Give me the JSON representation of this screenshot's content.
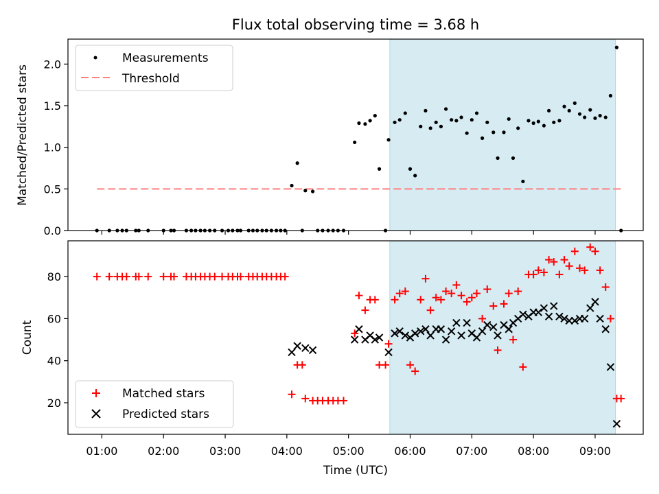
{
  "title": "Flux total observing time = 3.68 h",
  "xlabel": "Time (UTC)",
  "xticks": [
    "01:00",
    "02:00",
    "03:00",
    "04:00",
    "05:00",
    "06:00",
    "07:00",
    "08:00",
    "09:00"
  ],
  "colors": {
    "shade": "#add8e6",
    "measurement": "#000000",
    "threshold": "#ff7f7f",
    "matched": "#ff0000",
    "predicted": "#000000"
  },
  "chart_data": [
    {
      "type": "scatter",
      "ylabel": "Matched/Predicted stars",
      "xlim": [
        0.45,
        9.78
      ],
      "ylim": [
        0,
        2.3
      ],
      "yticks": [
        "0.0",
        "0.5",
        "1.0",
        "1.5",
        "2.0"
      ],
      "shaded_region": [
        5.67,
        9.33
      ],
      "legend": {
        "placement": "top-left",
        "entries": [
          "Measurements",
          "Threshold"
        ]
      },
      "threshold": {
        "name": "Threshold",
        "x": [
          0.92,
          9.42
        ],
        "y": 0.5
      },
      "series": [
        {
          "name": "Measurements",
          "points": [
            [
              0.92,
              0
            ],
            [
              1.12,
              0
            ],
            [
              1.25,
              0
            ],
            [
              1.33,
              0
            ],
            [
              1.4,
              0
            ],
            [
              1.55,
              0
            ],
            [
              1.6,
              0
            ],
            [
              1.75,
              0
            ],
            [
              2.0,
              0
            ],
            [
              2.12,
              0
            ],
            [
              2.17,
              0
            ],
            [
              2.37,
              0
            ],
            [
              2.45,
              0
            ],
            [
              2.52,
              0
            ],
            [
              2.6,
              0
            ],
            [
              2.67,
              0
            ],
            [
              2.75,
              0
            ],
            [
              2.83,
              0
            ],
            [
              2.95,
              0
            ],
            [
              3.05,
              0
            ],
            [
              3.12,
              0
            ],
            [
              3.2,
              0
            ],
            [
              3.25,
              0
            ],
            [
              3.38,
              0
            ],
            [
              3.45,
              0
            ],
            [
              3.52,
              0
            ],
            [
              3.6,
              0
            ],
            [
              3.67,
              0
            ],
            [
              3.75,
              0
            ],
            [
              3.83,
              0
            ],
            [
              3.9,
              0
            ],
            [
              3.97,
              0
            ],
            [
              4.08,
              0.54
            ],
            [
              4.17,
              0.81
            ],
            [
              4.25,
              0
            ],
            [
              4.3,
              0.48
            ],
            [
              4.42,
              0.47
            ],
            [
              4.5,
              0
            ],
            [
              4.58,
              0
            ],
            [
              4.67,
              0
            ],
            [
              4.75,
              0
            ],
            [
              4.83,
              0
            ],
            [
              4.92,
              0
            ],
            [
              5.1,
              1.06
            ],
            [
              5.17,
              1.29
            ],
            [
              5.27,
              1.28
            ],
            [
              5.35,
              1.32
            ],
            [
              5.43,
              1.38
            ],
            [
              5.5,
              0.74
            ],
            [
              5.6,
              0
            ],
            [
              5.65,
              1.09
            ],
            [
              5.75,
              1.3
            ],
            [
              5.83,
              1.33
            ],
            [
              5.92,
              1.41
            ],
            [
              6.0,
              0.74
            ],
            [
              6.08,
              0.66
            ],
            [
              6.17,
              1.25
            ],
            [
              6.25,
              1.44
            ],
            [
              6.33,
              1.23
            ],
            [
              6.42,
              1.3
            ],
            [
              6.5,
              1.25
            ],
            [
              6.58,
              1.46
            ],
            [
              6.67,
              1.33
            ],
            [
              6.75,
              1.32
            ],
            [
              6.83,
              1.36
            ],
            [
              6.92,
              1.17
            ],
            [
              7.0,
              1.33
            ],
            [
              7.08,
              1.41
            ],
            [
              7.17,
              1.11
            ],
            [
              7.25,
              1.3
            ],
            [
              7.35,
              1.18
            ],
            [
              7.42,
              0.87
            ],
            [
              7.52,
              1.18
            ],
            [
              7.6,
              1.34
            ],
            [
              7.67,
              0.87
            ],
            [
              7.75,
              1.23
            ],
            [
              7.83,
              0.59
            ],
            [
              7.92,
              1.32
            ],
            [
              8.0,
              1.29
            ],
            [
              8.08,
              1.31
            ],
            [
              8.17,
              1.26
            ],
            [
              8.25,
              1.44
            ],
            [
              8.33,
              1.3
            ],
            [
              8.42,
              1.32
            ],
            [
              8.5,
              1.49
            ],
            [
              8.58,
              1.44
            ],
            [
              8.67,
              1.53
            ],
            [
              8.75,
              1.4
            ],
            [
              8.83,
              1.36
            ],
            [
              8.92,
              1.45
            ],
            [
              9.0,
              1.35
            ],
            [
              9.08,
              1.38
            ],
            [
              9.17,
              1.36
            ],
            [
              9.25,
              1.62
            ],
            [
              9.35,
              2.2
            ],
            [
              9.42,
              0
            ]
          ]
        }
      ]
    },
    {
      "type": "scatter",
      "ylabel": "Count",
      "xlim": [
        0.45,
        9.78
      ],
      "ylim": [
        5,
        97
      ],
      "yticks": [
        "20",
        "40",
        "60",
        "80"
      ],
      "shaded_region": [
        5.67,
        9.33
      ],
      "legend": {
        "placement": "bottom-left",
        "entries": [
          "Matched stars",
          "Predicted stars"
        ]
      },
      "series": [
        {
          "name": "Matched stars",
          "marker": "plus",
          "points": [
            [
              0.92,
              80
            ],
            [
              1.12,
              80
            ],
            [
              1.25,
              80
            ],
            [
              1.33,
              80
            ],
            [
              1.4,
              80
            ],
            [
              1.55,
              80
            ],
            [
              1.6,
              80
            ],
            [
              1.75,
              80
            ],
            [
              2.0,
              80
            ],
            [
              2.12,
              80
            ],
            [
              2.17,
              80
            ],
            [
              2.37,
              80
            ],
            [
              2.45,
              80
            ],
            [
              2.52,
              80
            ],
            [
              2.6,
              80
            ],
            [
              2.67,
              80
            ],
            [
              2.75,
              80
            ],
            [
              2.83,
              80
            ],
            [
              2.95,
              80
            ],
            [
              3.05,
              80
            ],
            [
              3.12,
              80
            ],
            [
              3.2,
              80
            ],
            [
              3.25,
              80
            ],
            [
              3.38,
              80
            ],
            [
              3.45,
              80
            ],
            [
              3.52,
              80
            ],
            [
              3.6,
              80
            ],
            [
              3.67,
              80
            ],
            [
              3.75,
              80
            ],
            [
              3.83,
              80
            ],
            [
              3.9,
              80
            ],
            [
              3.97,
              80
            ],
            [
              4.08,
              24
            ],
            [
              4.17,
              38
            ],
            [
              4.25,
              38
            ],
            [
              4.3,
              22
            ],
            [
              4.42,
              21
            ],
            [
              4.5,
              21
            ],
            [
              4.58,
              21
            ],
            [
              4.67,
              21
            ],
            [
              4.75,
              21
            ],
            [
              4.83,
              21
            ],
            [
              4.92,
              21
            ],
            [
              5.1,
              53
            ],
            [
              5.17,
              71
            ],
            [
              5.27,
              64
            ],
            [
              5.35,
              69
            ],
            [
              5.43,
              69
            ],
            [
              5.5,
              38
            ],
            [
              5.6,
              38
            ],
            [
              5.65,
              48
            ],
            [
              5.75,
              69
            ],
            [
              5.83,
              72
            ],
            [
              5.92,
              73
            ],
            [
              6.0,
              38
            ],
            [
              6.08,
              35
            ],
            [
              6.17,
              69
            ],
            [
              6.25,
              79
            ],
            [
              6.33,
              64
            ],
            [
              6.42,
              70
            ],
            [
              6.5,
              69
            ],
            [
              6.58,
              73
            ],
            [
              6.67,
              72
            ],
            [
              6.75,
              76
            ],
            [
              6.83,
              71
            ],
            [
              6.92,
              68
            ],
            [
              7.0,
              70
            ],
            [
              7.08,
              72
            ],
            [
              7.17,
              60
            ],
            [
              7.25,
              74
            ],
            [
              7.35,
              66
            ],
            [
              7.42,
              45
            ],
            [
              7.52,
              67
            ],
            [
              7.6,
              72
            ],
            [
              7.67,
              50
            ],
            [
              7.75,
              73
            ],
            [
              7.83,
              37
            ],
            [
              7.92,
              81
            ],
            [
              8.0,
              81
            ],
            [
              8.08,
              83
            ],
            [
              8.17,
              82
            ],
            [
              8.25,
              88
            ],
            [
              8.33,
              87
            ],
            [
              8.42,
              81
            ],
            [
              8.5,
              88
            ],
            [
              8.58,
              85
            ],
            [
              8.67,
              92
            ],
            [
              8.75,
              84
            ],
            [
              8.83,
              83
            ],
            [
              8.92,
              94
            ],
            [
              9.0,
              92
            ],
            [
              9.08,
              83
            ],
            [
              9.17,
              75
            ],
            [
              9.25,
              60
            ],
            [
              9.35,
              22
            ],
            [
              9.42,
              22
            ]
          ]
        },
        {
          "name": "Predicted stars",
          "marker": "x",
          "points": [
            [
              4.08,
              44
            ],
            [
              4.17,
              47
            ],
            [
              4.3,
              46
            ],
            [
              4.42,
              45
            ],
            [
              5.1,
              50
            ],
            [
              5.17,
              55
            ],
            [
              5.27,
              50
            ],
            [
              5.35,
              52
            ],
            [
              5.43,
              50
            ],
            [
              5.5,
              51
            ],
            [
              5.65,
              44
            ],
            [
              5.75,
              53
            ],
            [
              5.83,
              54
            ],
            [
              5.92,
              52
            ],
            [
              6.0,
              51
            ],
            [
              6.08,
              53
            ],
            [
              6.17,
              54
            ],
            [
              6.25,
              55
            ],
            [
              6.33,
              52
            ],
            [
              6.42,
              55
            ],
            [
              6.5,
              55
            ],
            [
              6.58,
              50
            ],
            [
              6.67,
              54
            ],
            [
              6.75,
              58
            ],
            [
              6.83,
              52
            ],
            [
              6.92,
              58
            ],
            [
              7.0,
              53
            ],
            [
              7.08,
              51
            ],
            [
              7.17,
              54
            ],
            [
              7.25,
              57
            ],
            [
              7.35,
              56
            ],
            [
              7.42,
              52
            ],
            [
              7.52,
              57
            ],
            [
              7.6,
              55
            ],
            [
              7.67,
              58
            ],
            [
              7.75,
              60
            ],
            [
              7.83,
              62
            ],
            [
              7.92,
              61
            ],
            [
              8.0,
              63
            ],
            [
              8.08,
              63
            ],
            [
              8.17,
              65
            ],
            [
              8.25,
              61
            ],
            [
              8.33,
              66
            ],
            [
              8.42,
              61
            ],
            [
              8.5,
              60
            ],
            [
              8.58,
              59
            ],
            [
              8.67,
              59
            ],
            [
              8.75,
              60
            ],
            [
              8.83,
              60
            ],
            [
              8.92,
              65
            ],
            [
              9.0,
              68
            ],
            [
              9.08,
              60
            ],
            [
              9.17,
              55
            ],
            [
              9.25,
              37
            ],
            [
              9.35,
              10
            ]
          ]
        }
      ]
    }
  ]
}
